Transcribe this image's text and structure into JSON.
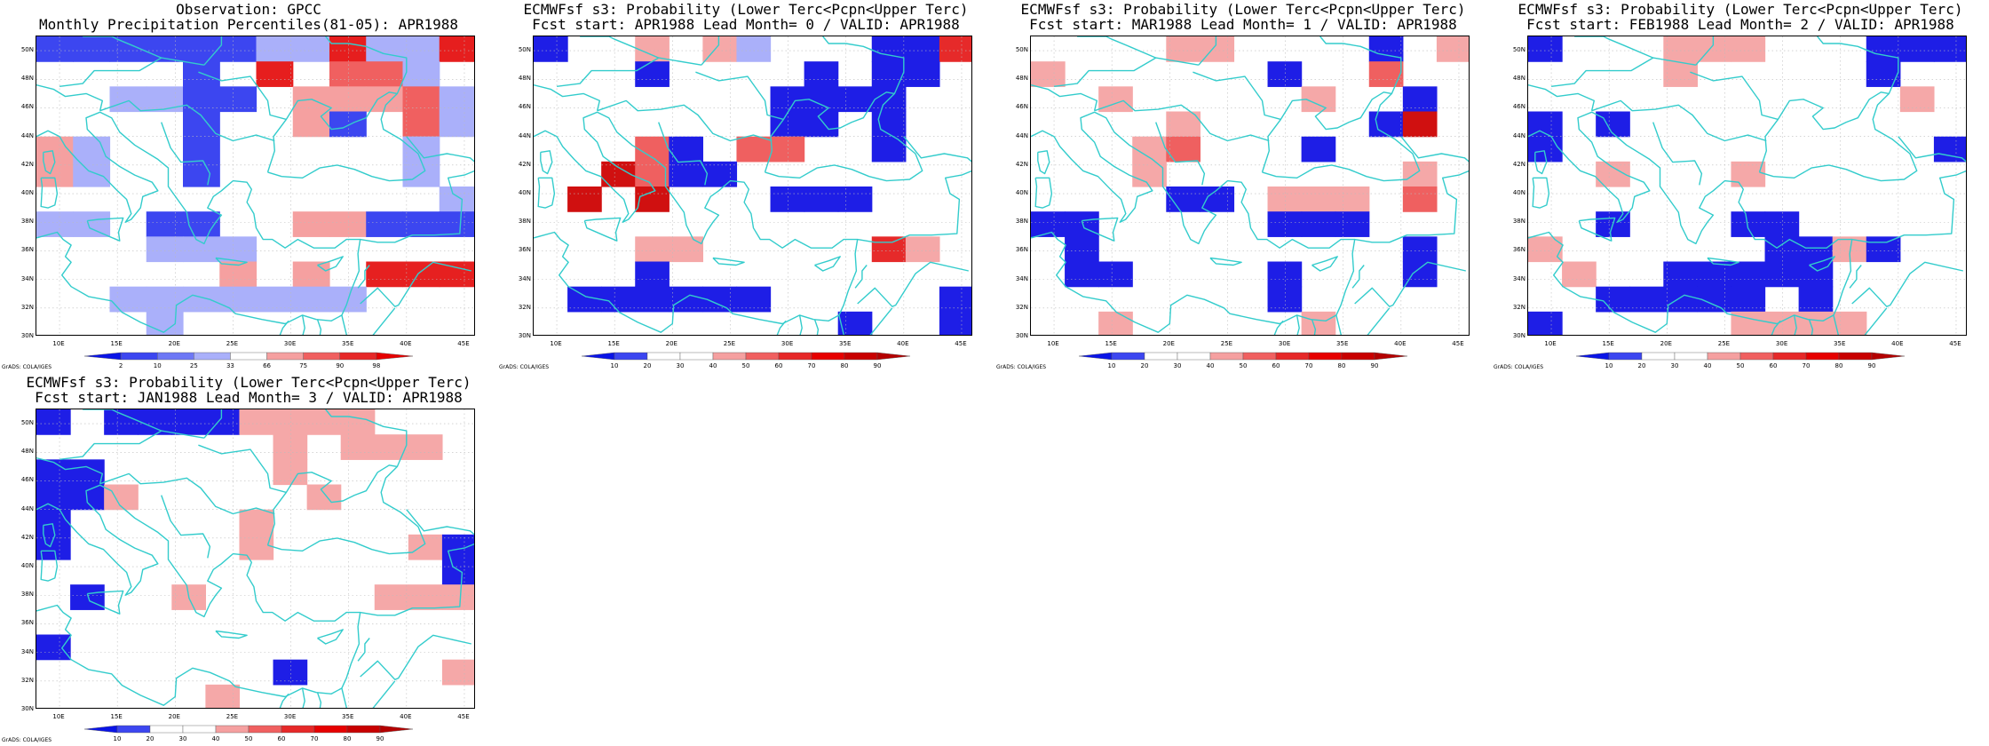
{
  "panels": [
    {
      "id": "obs",
      "title_line1": "Observation: GPCC",
      "title_line2": "Monthly Precipitation Percentiles(81-05): APR1988",
      "colorbar": {
        "labels": [
          "2",
          "10",
          "25",
          "33",
          "66",
          "75",
          "90",
          "98"
        ],
        "colors": [
          "#0a14e6",
          "#3c46f0",
          "#6e78f5",
          "#aab0fa",
          "#ffffff",
          "#f5a0a0",
          "#f06060",
          "#e62828",
          "#e60000"
        ]
      },
      "grid": [
        "444444bb2332",
        "66664626aa76",
        "66bb446555a7",
        "6666466546a7",
        "8b66466666b6",
        "8b66466666b6",
        "66666666666b",
        "bb6446655444",
        "666333666666",
        "666665656999",
        "6677777b7666",
        "666766666666"
      ]
    },
    {
      "id": "lead0",
      "title_line1": "ECMWFsf s3: Probability (Lower Terc<Pcpn<Upper Terc)",
      "title_line2": "Fcst start: APR1988  Lead Month= 0 / VALID: APR1988"
    },
    {
      "id": "lead1",
      "title_line1": "ECMWFsf s3: Probability (Lower Terc<Pcpn<Upper Terc)",
      "title_line2": "Fcst start: MAR1988  Lead Month= 1 / VALID: APR1988"
    },
    {
      "id": "lead2",
      "title_line1": "ECMWFsf s3: Probability (Lower Terc<Pcpn<Upper Terc)",
      "title_line2": "Fcst start: FEB1988  Lead Month= 2 / VALID: APR1988"
    },
    {
      "id": "lead3",
      "title_line1": "ECMWFsf s3: Probability (Lower Terc<Pcpn<Upper Terc)",
      "title_line2": "Fcst start: JAN1988  Lead Month= 3 / VALID: APR1988"
    }
  ],
  "forecast_colorbar": {
    "labels": [
      "10",
      "20",
      "30",
      "40",
      "50",
      "60",
      "70",
      "80",
      "90"
    ],
    "colors": [
      "#0a14e6",
      "#3c46f0",
      "#ffffff",
      "#ffffff",
      "#f5a0a0",
      "#f06060",
      "#e62828",
      "#e60000",
      "#c80000",
      "#b40000"
    ]
  },
  "axes": {
    "lat_labels": [
      "50N",
      "48N",
      "46N",
      "44N",
      "42N",
      "40N",
      "38N",
      "36N",
      "34N",
      "32N",
      "30N"
    ],
    "lon_labels": [
      "10E",
      "15E",
      "20E",
      "25E",
      "30E",
      "35E",
      "40E",
      "45E"
    ],
    "lat_range": [
      30,
      51
    ],
    "lon_range": [
      8,
      46
    ]
  },
  "credit": "GrADS: COLA/IGES",
  "colors": {
    "coast": "#33cccc",
    "grid_line": "#bbbbbb"
  },
  "forecast_grids": [
    [
      "4660653666448",
      "6664666646446",
      "6666666444466",
      "6666666446466",
      "6667467766466",
      "6697446666666",
      "6969666444666",
      "6666666666666",
      "6665566666856",
      "6664666666666",
      "6444444666664",
      "6666666664664"
    ],
    [
      "6666556666465",
      "5666666466766",
      "6656666656646",
      "6666566666496",
      "6665766646666",
      "6665666666656",
      "6666446555676",
      "4466666444666",
      "6466666666646",
      "6446666466646",
      "6666666466666",
      "6656666656666"
    ],
    [
      "4666555666444",
      "6666566666466",
      "6666666666656",
      "4646666666666",
      "4666666666664",
      "6656665666666",
      "6666666666666",
      "6646664466666",
      "5666666445466",
      "6566444446666",
      "6644444646666",
      "4666665555666"
    ],
    [
      "4644445555666",
      "6666666565556",
      "4466666566666",
      "4456666656666",
      "4666665666666",
      "4666665666654",
      "6666666666664",
      "6466566666555",
      "6666666666666",
      "4666666666666",
      "6666666466665",
      "6666656666666"
    ]
  ]
}
